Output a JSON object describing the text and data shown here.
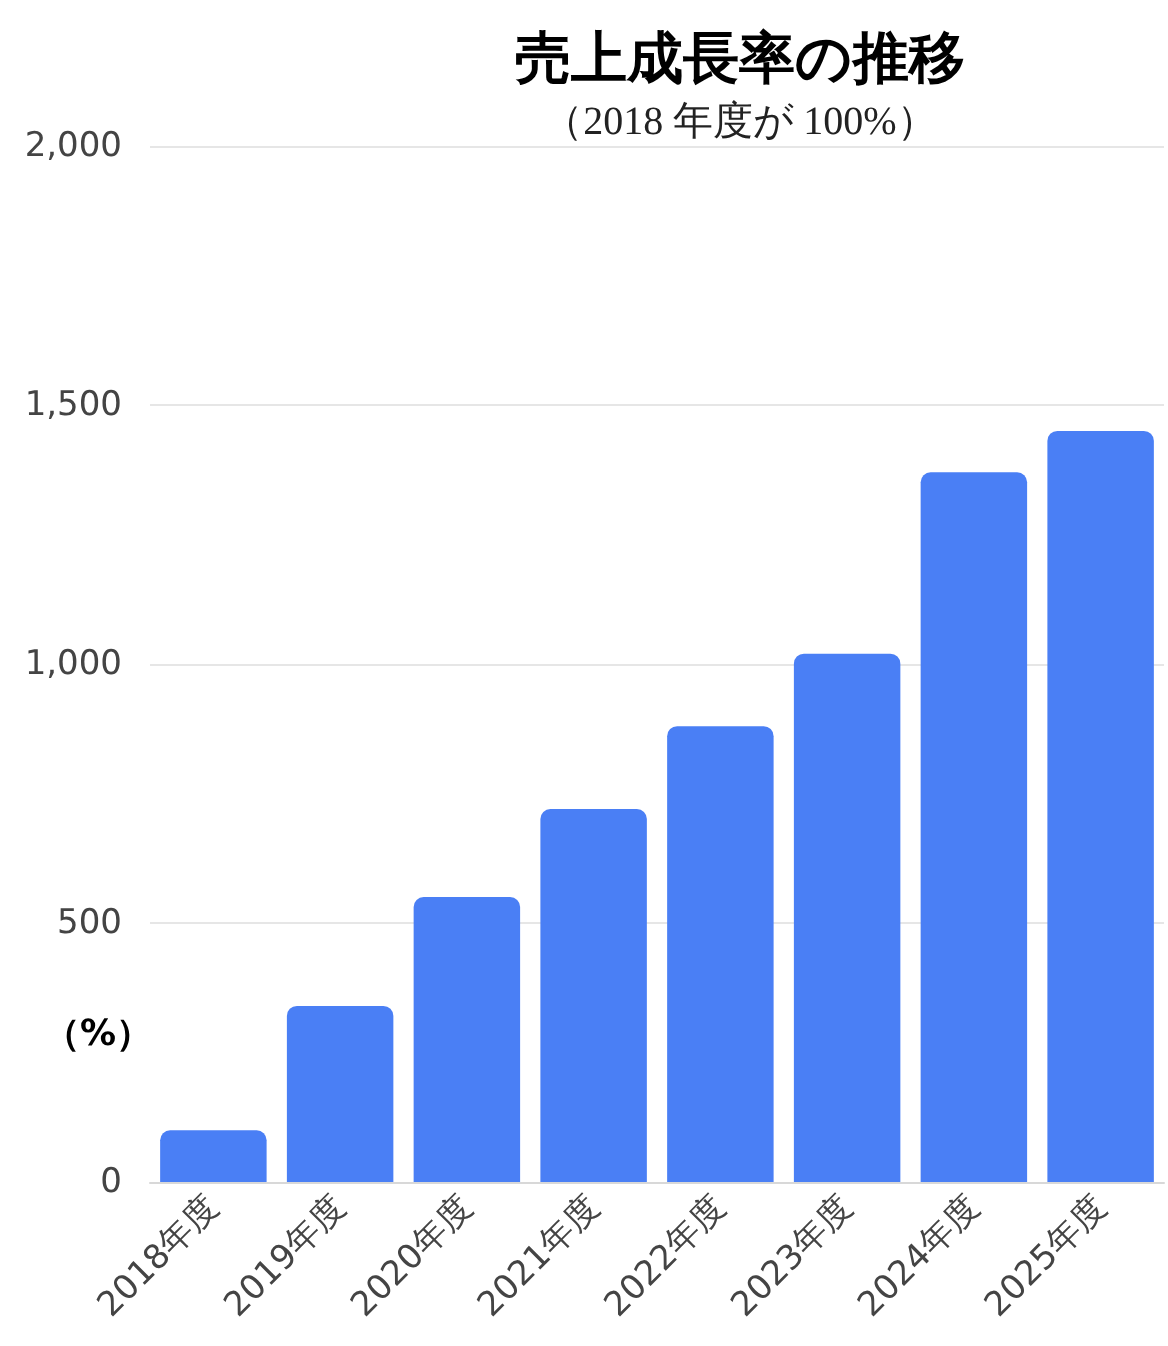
{
  "chart_data": {
    "type": "bar",
    "title": "売上成長率の推移",
    "subtitle": "（2018 年度が 100%）",
    "ylabel": "（%）",
    "categories": [
      "2018年度",
      "2019年度",
      "2020年度",
      "2021年度",
      "2022年度",
      "2023年度",
      "2024年度",
      "2025年度"
    ],
    "values": [
      100,
      340,
      550,
      720,
      880,
      1020,
      1370,
      1450
    ],
    "color": "#4a7ff5",
    "ylim": [
      0,
      2000
    ],
    "yticks": [
      {
        "value": 0,
        "label": "0"
      },
      {
        "value": 500,
        "label": "500"
      },
      {
        "value": 1000,
        "label": "1,000"
      },
      {
        "value": 1500,
        "label": "1,500"
      },
      {
        "value": 2000,
        "label": "2,000"
      }
    ],
    "grid": "y"
  }
}
